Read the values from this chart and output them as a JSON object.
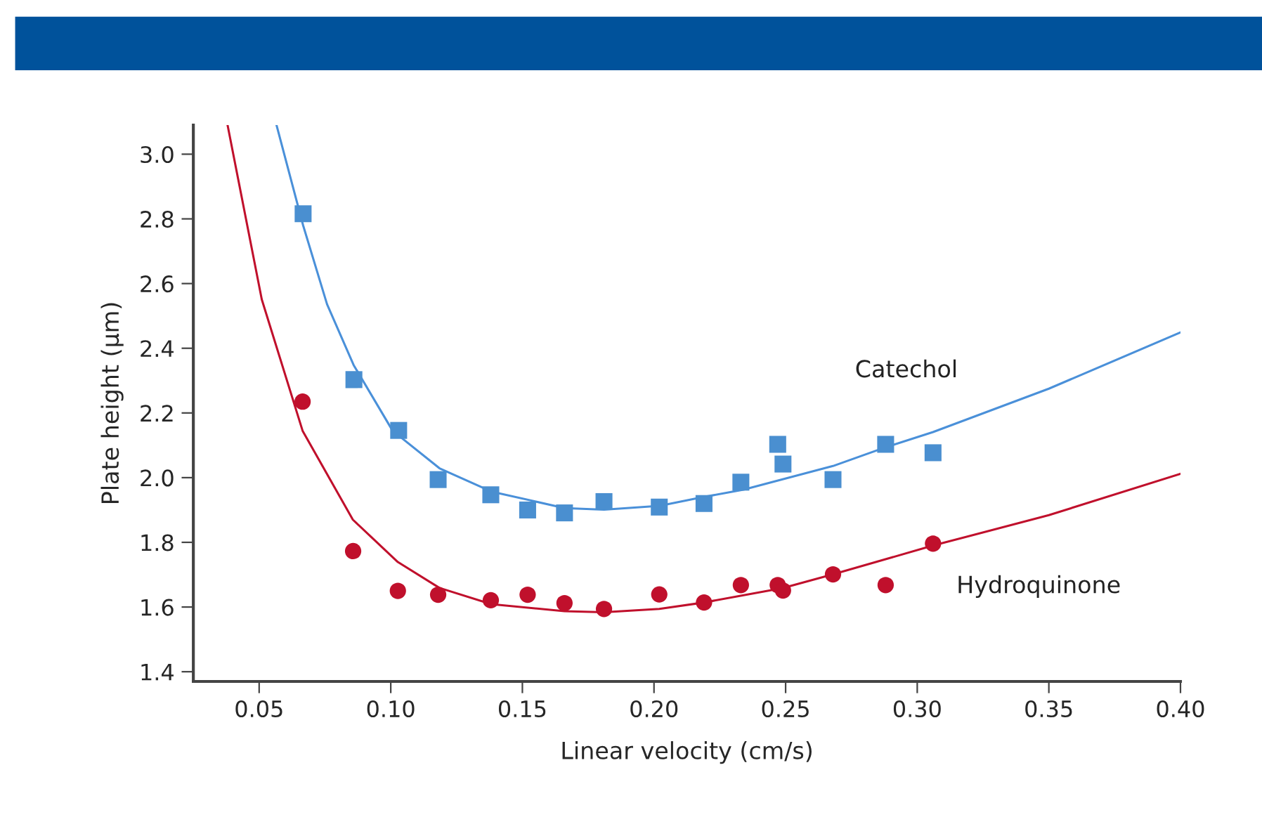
{
  "chart_data": {
    "type": "scatter",
    "xlabel": "Linear velocity (cm/s)",
    "ylabel": "Plate height (µm)",
    "xlim": [
      0.025,
      0.4
    ],
    "ylim": [
      1.37,
      3.09
    ],
    "xticks": [
      {
        "value": 0.05,
        "label": "0.05"
      },
      {
        "value": 0.1,
        "label": "0.10"
      },
      {
        "value": 0.15,
        "label": "0.15"
      },
      {
        "value": 0.2,
        "label": "0.20"
      },
      {
        "value": 0.25,
        "label": "0.25"
      },
      {
        "value": 0.3,
        "label": "0.30"
      },
      {
        "value": 0.35,
        "label": "0.35"
      },
      {
        "value": 0.4,
        "label": "0.40"
      }
    ],
    "yticks": [
      {
        "value": 1.4,
        "label": "1.4"
      },
      {
        "value": 1.6,
        "label": "1.6"
      },
      {
        "value": 1.8,
        "label": "1.8"
      },
      {
        "value": 2.0,
        "label": "2.0"
      },
      {
        "value": 2.2,
        "label": "2.2"
      },
      {
        "value": 2.4,
        "label": "2.4"
      },
      {
        "value": 2.6,
        "label": "2.6"
      },
      {
        "value": 2.8,
        "label": "2.8"
      },
      {
        "value": 3.0,
        "label": "3.0"
      }
    ],
    "grid": false,
    "legend": false,
    "series": [
      {
        "name": "Catechol",
        "marker": "square",
        "color": "#4a8fd0",
        "x": [
          0.0667,
          0.086,
          0.103,
          0.118,
          0.138,
          0.152,
          0.166,
          0.181,
          0.202,
          0.219,
          0.233,
          0.247,
          0.249,
          0.268,
          0.288,
          0.306
        ],
        "values": [
          2.816,
          2.303,
          2.146,
          1.994,
          1.947,
          1.9,
          1.891,
          1.926,
          1.909,
          1.92,
          1.986,
          2.103,
          2.042,
          1.994,
          2.103,
          2.077
        ]
      },
      {
        "type": "line",
        "marker": "none",
        "color": "#4a90d9",
        "x": [
          0.0566,
          0.0667,
          0.0758,
          0.0859,
          0.1007,
          0.1185,
          0.1382,
          0.166,
          0.181,
          0.2022,
          0.218,
          0.234,
          0.268,
          0.288,
          0.306,
          0.35,
          0.4
        ],
        "values": [
          3.09,
          2.78,
          2.536,
          2.348,
          2.145,
          2.029,
          1.957,
          1.906,
          1.901,
          1.913,
          1.939,
          1.963,
          2.036,
          2.094,
          2.141,
          2.275,
          2.449
        ]
      },
      {
        "name": "Hydroquinone",
        "marker": "circle",
        "color": "#c0102c",
        "x": [
          0.0665,
          0.0857,
          0.1027,
          0.118,
          0.138,
          0.152,
          0.166,
          0.181,
          0.202,
          0.219,
          0.233,
          0.247,
          0.249,
          0.268,
          0.288,
          0.306
        ],
        "values": [
          2.235,
          1.773,
          1.65,
          1.638,
          1.621,
          1.638,
          1.612,
          1.594,
          1.639,
          1.614,
          1.668,
          1.668,
          1.651,
          1.701,
          1.668,
          1.796
        ]
      },
      {
        "type": "line",
        "marker": "none",
        "color": "#c0102c",
        "x": [
          0.038,
          0.051,
          0.0665,
          0.0856,
          0.1027,
          0.1185,
          0.1382,
          0.166,
          0.181,
          0.202,
          0.219,
          0.249,
          0.268,
          0.306,
          0.35,
          0.4
        ],
        "values": [
          3.09,
          2.551,
          2.145,
          1.87,
          1.739,
          1.659,
          1.609,
          1.587,
          1.584,
          1.594,
          1.614,
          1.659,
          1.701,
          1.79,
          1.884,
          2.012
        ]
      }
    ]
  }
}
